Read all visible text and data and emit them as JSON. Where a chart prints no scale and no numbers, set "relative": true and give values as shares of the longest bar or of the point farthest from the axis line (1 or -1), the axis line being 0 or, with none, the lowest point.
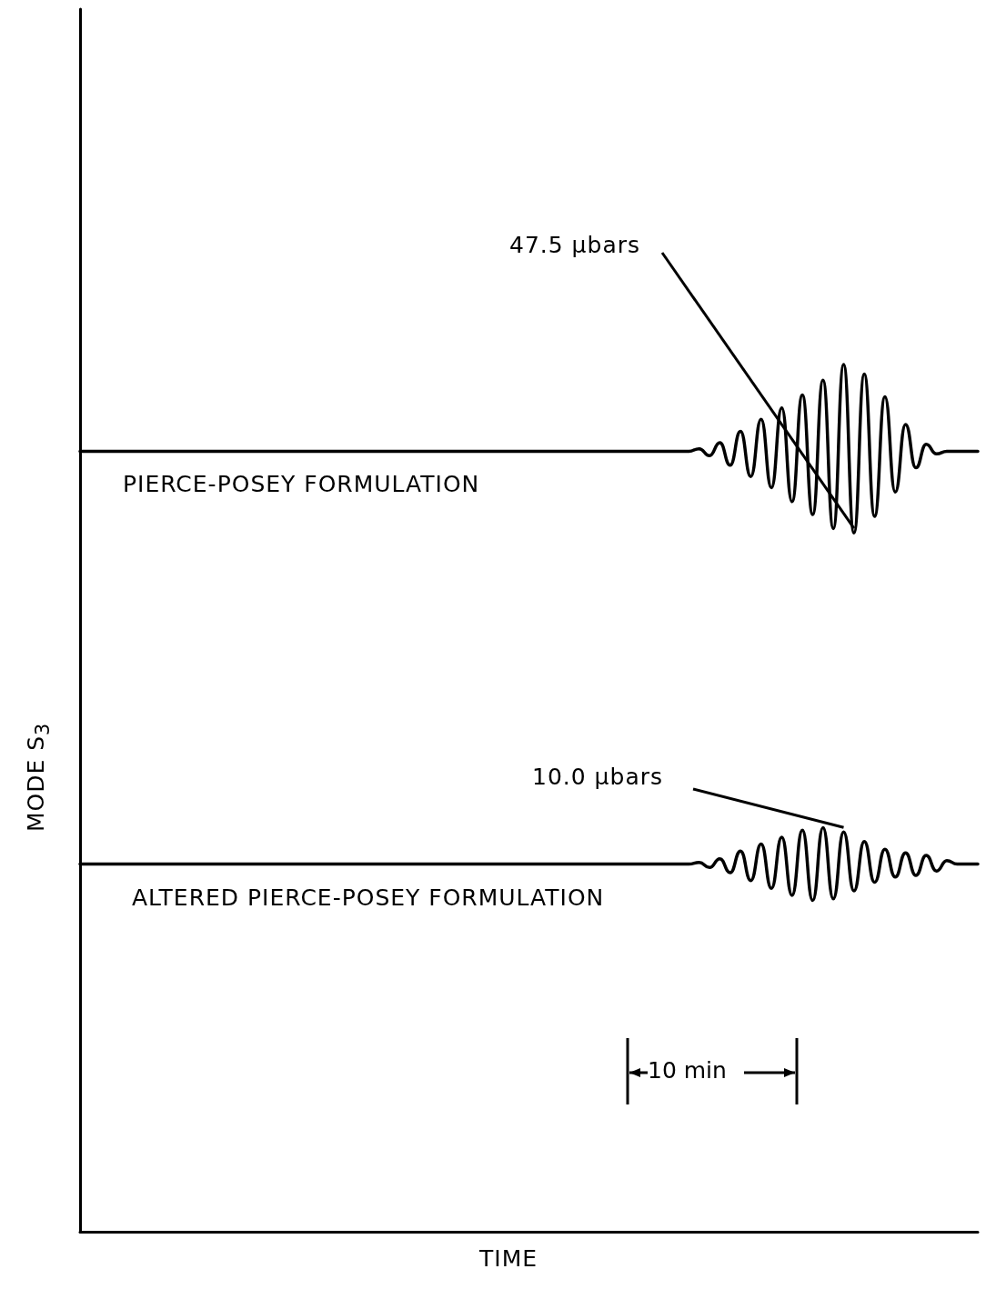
{
  "chart_data": {
    "type": "line",
    "relative": true,
    "xlabel": "TIME",
    "ylabel": "MODE S$_{3}$",
    "categories": [
      null,
      null,
      null,
      null,
      null,
      null,
      null,
      null,
      null,
      null,
      null,
      null,
      null,
      null,
      null,
      null,
      null,
      null,
      null,
      null,
      null,
      null,
      null,
      null,
      null,
      null,
      null,
      null,
      null,
      null,
      null,
      null,
      null,
      null,
      null,
      null,
      null,
      null,
      null,
      null,
      null,
      null,
      null,
      null,
      null,
      null,
      null,
      null,
      null,
      null,
      null,
      null,
      null,
      null,
      null,
      null,
      null,
      null,
      null,
      null,
      null,
      null,
      null,
      null,
      null,
      null,
      null,
      null,
      null,
      null,
      null,
      null,
      null,
      null,
      null,
      null,
      null,
      null,
      null,
      null,
      null,
      null,
      null,
      null,
      null,
      null,
      null,
      null
    ],
    "series": [
      {
        "name": "PIERCE-POSEY FORMULATION",
        "color": "#000000",
        "values": [
          0.9,
          0.9,
          0.9,
          0.9,
          0.9,
          0.9,
          0.9,
          0.9,
          0.9,
          0.9,
          0.9,
          0.9,
          0.9,
          0.9,
          0.9,
          0.9,
          0.9,
          0.9,
          0.9,
          0.9,
          0.9,
          0.9,
          0.9,
          0.9,
          0.9,
          0.9,
          0.9,
          0.9,
          0.9,
          0.9,
          0.9,
          0.9,
          0.9,
          0.9,
          0.9,
          0.9,
          0.9,
          0.9,
          0.9,
          0.9,
          0.9,
          0.9,
          0.9,
          0.9,
          0.9,
          0.9,
          0.9,
          0.9,
          0.9,
          0.9,
          0.9,
          0.9,
          0.9,
          0.9,
          0.9,
          0.9,
          0.9,
          0.9,
          0.9,
          0.9,
          0.903,
          0.895,
          0.91,
          0.884,
          0.923,
          0.871,
          0.937,
          0.858,
          0.95,
          0.842,
          0.965,
          0.827,
          0.982,
          0.811,
          1,
          0.806,
          0.989,
          0.825,
          0.963,
          0.853,
          0.931,
          0.881,
          0.908,
          0.897,
          0.9,
          0.9,
          0.9,
          0.9
        ]
      },
      {
        "name": "ALTERED PIERCE-POSEY FORMULATION",
        "color": "#000000",
        "values": [
          0.424,
          0.424,
          0.424,
          0.424,
          0.424,
          0.424,
          0.424,
          0.424,
          0.424,
          0.424,
          0.424,
          0.424,
          0.424,
          0.424,
          0.424,
          0.424,
          0.424,
          0.424,
          0.424,
          0.424,
          0.424,
          0.424,
          0.424,
          0.424,
          0.424,
          0.424,
          0.424,
          0.424,
          0.424,
          0.424,
          0.424,
          0.424,
          0.424,
          0.424,
          0.424,
          0.424,
          0.424,
          0.424,
          0.424,
          0.424,
          0.424,
          0.424,
          0.424,
          0.424,
          0.424,
          0.424,
          0.424,
          0.424,
          0.424,
          0.424,
          0.424,
          0.424,
          0.424,
          0.424,
          0.424,
          0.424,
          0.424,
          0.424,
          0.424,
          0.424,
          0.426,
          0.42,
          0.43,
          0.414,
          0.439,
          0.405,
          0.447,
          0.396,
          0.455,
          0.388,
          0.463,
          0.382,
          0.466,
          0.384,
          0.461,
          0.393,
          0.45,
          0.403,
          0.441,
          0.409,
          0.437,
          0.411,
          0.434,
          0.416,
          0.428,
          0.424,
          0.424,
          0.424
        ]
      }
    ],
    "annotations": [
      "47.5 μbars",
      "10.0 μbars",
      "10 min"
    ],
    "marker": "none",
    "line_style": "solid",
    "grid": false,
    "legend": false
  }
}
